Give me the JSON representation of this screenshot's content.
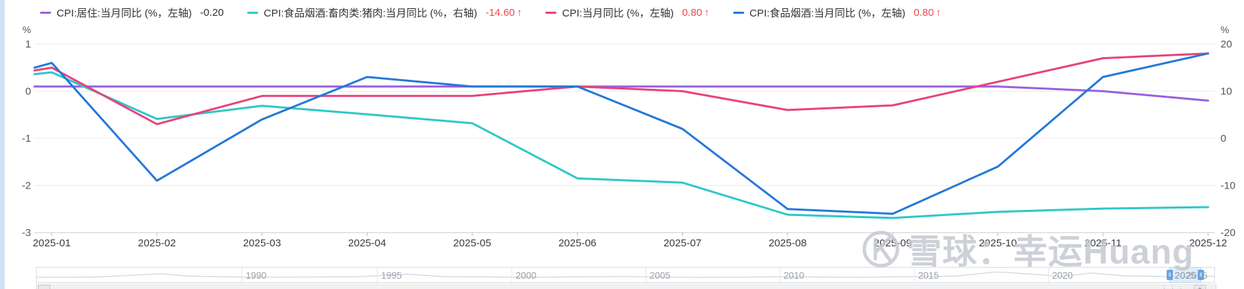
{
  "page": {
    "bg": "#ffffff",
    "edge_strip_color": "#cfe3f5"
  },
  "colors": {
    "purple": "#9a5fe0",
    "teal": "#2ec7c9",
    "pink": "#e8437a",
    "blue": "#2478d9",
    "value_up_red": "#f04a4a",
    "grid": "#ebebeb",
    "axis_line": "#c9c9c9",
    "tick": "#bbbbbb",
    "axis_text": "#555555",
    "x_label_text": "#3c3c3c"
  },
  "legend": {
    "items": [
      {
        "label": "CPI:居住:当月同比 (%，左轴)",
        "value": "-0.20",
        "arrow": "",
        "value_color": "#333333",
        "color": "#9a5fe0"
      },
      {
        "label": "CPI:食品烟酒:畜肉类:猪肉:当月同比 (%，右轴)",
        "value": "-14.60",
        "arrow": "↑",
        "value_color": "#f04a4a",
        "color": "#2ec7c9"
      },
      {
        "label": "CPI:当月同比 (%，左轴)",
        "value": "0.80",
        "arrow": "↑",
        "value_color": "#f04a4a",
        "color": "#e8437a"
      },
      {
        "label": "CPI:食品烟酒:当月同比 (%，左轴)",
        "value": "0.80",
        "arrow": "↑",
        "value_color": "#f04a4a",
        "color": "#2478d9"
      }
    ]
  },
  "chart_data": {
    "type": "line",
    "categories": [
      "2025-01",
      "2025-02",
      "2025-03",
      "2025-04",
      "2025-05",
      "2025-06",
      "2025-07",
      "2025-08",
      "2025-09",
      "2025-10",
      "2025-11",
      "2025-12"
    ],
    "left_axis": {
      "unit": "%",
      "ticks": [
        1,
        0,
        -1,
        -2,
        -3
      ],
      "min": -3,
      "max": 1
    },
    "right_axis": {
      "unit": "%",
      "ticks": [
        20,
        10,
        0,
        -10,
        -20
      ],
      "min": -20,
      "max": 20
    },
    "grid": true,
    "legend_position": "top",
    "series": [
      {
        "name": "CPI:居住:当月同比",
        "axis": "left",
        "color": "#9a5fe0",
        "edge": 0.1,
        "values": [
          0.1,
          0.1,
          0.1,
          0.1,
          0.1,
          0.1,
          0.1,
          0.1,
          0.1,
          0.1,
          0.0,
          -0.2
        ]
      },
      {
        "name": "CPI:食品烟酒:畜肉类:猪肉:当月同比",
        "axis": "right",
        "color": "#2ec7c9",
        "edge": 13.6,
        "values": [
          14.0,
          4.1,
          6.9,
          5.1,
          3.2,
          -8.5,
          -9.4,
          -16.2,
          -16.9,
          -15.6,
          -14.9,
          -14.6
        ]
      },
      {
        "name": "CPI:当月同比",
        "axis": "left",
        "color": "#e8437a",
        "edge": 0.44,
        "values": [
          0.5,
          -0.7,
          -0.1,
          -0.1,
          -0.1,
          0.1,
          0.0,
          -0.4,
          -0.3,
          0.2,
          0.7,
          0.8
        ]
      },
      {
        "name": "CPI:食品烟酒:当月同比",
        "axis": "left",
        "color": "#2478d9",
        "edge": 0.5,
        "values": [
          0.6,
          -1.9,
          -0.6,
          0.3,
          0.1,
          0.1,
          -0.8,
          -2.5,
          -2.6,
          -1.6,
          0.3,
          0.8
        ]
      }
    ]
  },
  "watermark": {
    "text": "雪球：幸运Huang"
  },
  "timeline": {
    "years": [
      "1990",
      "1995",
      "2000",
      "2005",
      "2010",
      "2015",
      "2020",
      "2025"
    ],
    "year_fracs": [
      0.174,
      0.289,
      0.403,
      0.517,
      0.631,
      0.745,
      0.859,
      0.973
    ],
    "selected_label": "2025",
    "window_frac": [
      0.962,
      0.989
    ],
    "sparkline": [
      [
        0,
        0.62
      ],
      [
        0.05,
        0.6
      ],
      [
        0.08,
        0.45
      ],
      [
        0.105,
        0.3
      ],
      [
        0.13,
        0.52
      ],
      [
        0.18,
        0.62
      ],
      [
        0.27,
        0.58
      ],
      [
        0.315,
        0.34
      ],
      [
        0.345,
        0.56
      ],
      [
        0.42,
        0.62
      ],
      [
        0.5,
        0.55
      ],
      [
        0.56,
        0.64
      ],
      [
        0.63,
        0.58
      ],
      [
        0.7,
        0.62
      ],
      [
        0.78,
        0.52
      ],
      [
        0.815,
        0.14
      ],
      [
        0.845,
        0.34
      ],
      [
        0.87,
        0.55
      ],
      [
        0.895,
        0.24
      ],
      [
        0.925,
        0.5
      ],
      [
        0.96,
        0.55
      ],
      [
        1,
        0.52
      ]
    ]
  }
}
